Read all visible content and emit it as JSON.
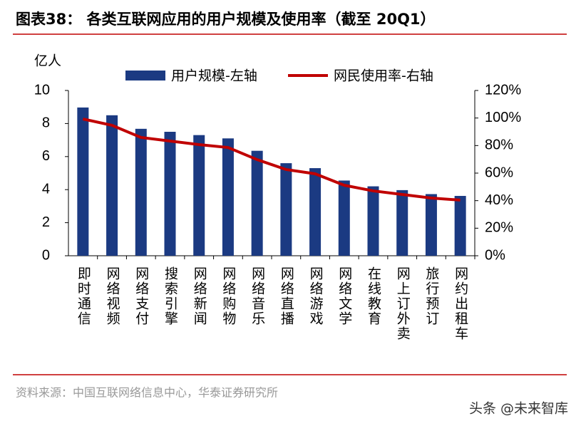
{
  "chart_data": {
    "type": "bar_line",
    "title": "图表38：  各类互联网应用的用户规模及使用率（截至 20Q1）",
    "y_label": "亿人",
    "source": "资料来源：中国互联网络信息中心，华泰证券研究所",
    "watermark": "头条 @未来智库",
    "categories": [
      "即时通信",
      "网络视频",
      "网络支付",
      "搜索引擎",
      "网络新闻",
      "网络购物",
      "网络音乐",
      "网络直播",
      "网络游戏",
      "网络文学",
      "在线教育",
      "网上订外卖",
      "旅行预订",
      "网约出租车"
    ],
    "series": [
      {
        "name": "用户规模-左轴",
        "color": "#1b3a82",
        "kind": "bar",
        "values": [
          8.97,
          8.5,
          7.68,
          7.5,
          7.3,
          7.1,
          6.35,
          5.6,
          5.3,
          4.55,
          4.2,
          3.97,
          3.73,
          3.62
        ]
      },
      {
        "name": "网民使用率-右轴",
        "color": "#c00000",
        "kind": "line",
        "axis": "y2",
        "values": [
          99.3,
          94.7,
          85.9,
          83.3,
          80.7,
          78.6,
          69.8,
          62.6,
          59.5,
          51.2,
          47.1,
          44.5,
          41.9,
          40.4
        ]
      }
    ],
    "ylim": [
      0,
      10
    ],
    "yticks": [
      0,
      2,
      4,
      6,
      8,
      10
    ],
    "y2lim": [
      0,
      120
    ],
    "y2ticks": [
      {
        "value": 0,
        "label": "0%"
      },
      {
        "value": 20,
        "label": "20%"
      },
      {
        "value": 40,
        "label": "40%"
      },
      {
        "value": 60,
        "label": "60%"
      },
      {
        "value": 80,
        "label": "80%"
      },
      {
        "value": 100,
        "label": "100%"
      },
      {
        "value": 120,
        "label": "120%"
      }
    ]
  }
}
